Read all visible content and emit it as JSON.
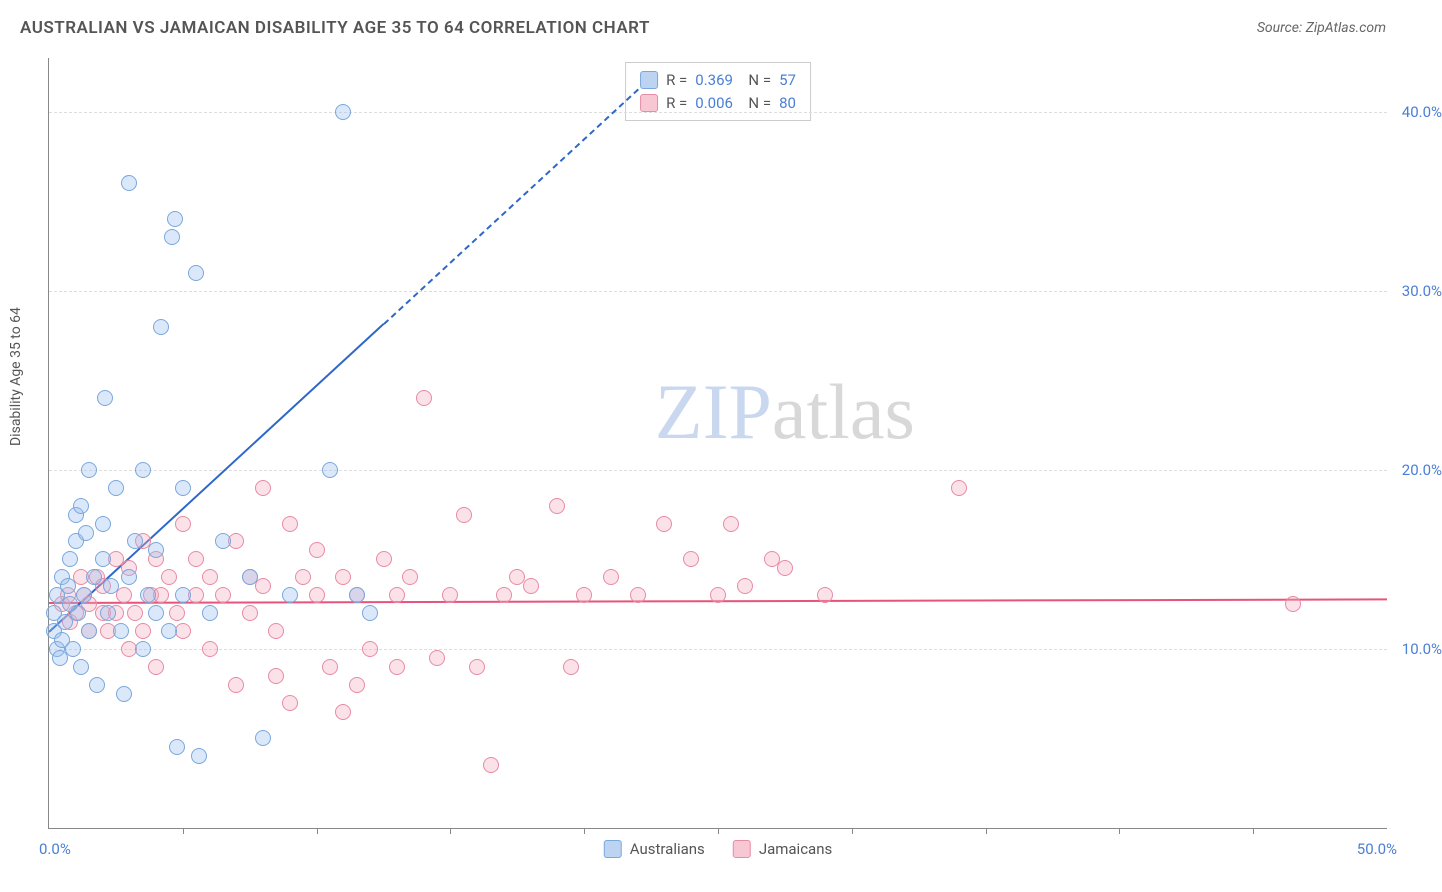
{
  "title": "AUSTRALIAN VS JAMAICAN DISABILITY AGE 35 TO 64 CORRELATION CHART",
  "source": "Source: ZipAtlas.com",
  "y_axis_title": "Disability Age 35 to 64",
  "watermark_zip": "ZIP",
  "watermark_atlas": "atlas",
  "watermark_zip_color": "#c9d8ef",
  "watermark_atlas_color": "#d8d8d8",
  "chart": {
    "type": "scatter",
    "xlim": [
      0,
      50
    ],
    "ylim": [
      0,
      43
    ],
    "x_tick_positions": [
      5,
      10,
      15,
      20,
      25,
      30,
      35,
      40,
      45
    ],
    "y_gridlines": [
      10,
      20,
      30,
      40
    ],
    "x_label_min": "0.0%",
    "x_label_max": "50.0%",
    "y_tick_labels": {
      "10": "10.0%",
      "20": "20.0%",
      "30": "30.0%",
      "40": "40.0%"
    },
    "background_color": "#ffffff",
    "grid_color": "#dddddd",
    "axis_color": "#888888",
    "marker_radius": 8,
    "marker_border_width": 1.5,
    "series": [
      {
        "name": "Australians",
        "fill": "rgba(151,190,237,0.35)",
        "stroke": "#7aa7de",
        "swatch_fill": "#bcd4f2",
        "swatch_border": "#7aa7de",
        "R": "0.369",
        "N": "57",
        "trend": {
          "x1": 0,
          "y1": 11.0,
          "x2": 12.5,
          "y2": 28.2,
          "solid_color": "#2f67c9",
          "dashed_extend_x": 22,
          "dashed_extend_y": 41.3
        },
        "points": [
          [
            0.2,
            11
          ],
          [
            0.2,
            12
          ],
          [
            0.3,
            10
          ],
          [
            0.3,
            13
          ],
          [
            0.4,
            9.5
          ],
          [
            0.5,
            14
          ],
          [
            0.5,
            10.5
          ],
          [
            0.6,
            11.5
          ],
          [
            0.7,
            13.5
          ],
          [
            0.8,
            12.5
          ],
          [
            0.8,
            15
          ],
          [
            0.9,
            10
          ],
          [
            1.0,
            16
          ],
          [
            1.0,
            17.5
          ],
          [
            1.1,
            12
          ],
          [
            1.2,
            18
          ],
          [
            1.2,
            9
          ],
          [
            1.3,
            13
          ],
          [
            1.4,
            16.5
          ],
          [
            1.5,
            11
          ],
          [
            1.5,
            20
          ],
          [
            1.7,
            14
          ],
          [
            1.8,
            8
          ],
          [
            2.0,
            15
          ],
          [
            2.0,
            17
          ],
          [
            2.1,
            24
          ],
          [
            2.2,
            12
          ],
          [
            2.3,
            13.5
          ],
          [
            2.5,
            19
          ],
          [
            2.7,
            11
          ],
          [
            2.8,
            7.5
          ],
          [
            3.0,
            14
          ],
          [
            3.0,
            36
          ],
          [
            3.2,
            16
          ],
          [
            3.5,
            10
          ],
          [
            3.5,
            20
          ],
          [
            3.7,
            13
          ],
          [
            4.0,
            12
          ],
          [
            4.0,
            15.5
          ],
          [
            4.2,
            28
          ],
          [
            4.5,
            11
          ],
          [
            4.6,
            33
          ],
          [
            4.7,
            34
          ],
          [
            4.8,
            4.5
          ],
          [
            5.0,
            13
          ],
          [
            5.0,
            19
          ],
          [
            5.5,
            31
          ],
          [
            5.6,
            4
          ],
          [
            6.0,
            12
          ],
          [
            6.5,
            16
          ],
          [
            7.5,
            14
          ],
          [
            8.0,
            5
          ],
          [
            9.0,
            13
          ],
          [
            10.5,
            20
          ],
          [
            11.0,
            40
          ],
          [
            11.5,
            13
          ],
          [
            12.0,
            12
          ]
        ]
      },
      {
        "name": "Jamaicans",
        "fill": "rgba(244,170,190,0.35)",
        "stroke": "#e88ba4",
        "swatch_fill": "#f7c8d4",
        "swatch_border": "#e88ba4",
        "R": "0.006",
        "N": "80",
        "trend": {
          "x1": 0,
          "y1": 12.6,
          "x2": 50,
          "y2": 12.8,
          "solid_color": "#e6537d"
        },
        "points": [
          [
            0.5,
            12.5
          ],
          [
            0.7,
            13
          ],
          [
            0.8,
            11.5
          ],
          [
            1.0,
            12
          ],
          [
            1.2,
            14
          ],
          [
            1.3,
            13
          ],
          [
            1.5,
            11
          ],
          [
            1.5,
            12.5
          ],
          [
            1.8,
            14
          ],
          [
            2.0,
            12
          ],
          [
            2.0,
            13.5
          ],
          [
            2.2,
            11
          ],
          [
            2.5,
            15
          ],
          [
            2.5,
            12
          ],
          [
            2.8,
            13
          ],
          [
            3.0,
            10
          ],
          [
            3.0,
            14.5
          ],
          [
            3.2,
            12
          ],
          [
            3.5,
            16
          ],
          [
            3.5,
            11
          ],
          [
            3.8,
            13
          ],
          [
            4.0,
            15
          ],
          [
            4.0,
            9
          ],
          [
            4.2,
            13
          ],
          [
            4.5,
            14
          ],
          [
            4.8,
            12
          ],
          [
            5.0,
            17
          ],
          [
            5.0,
            11
          ],
          [
            5.5,
            13
          ],
          [
            5.5,
            15
          ],
          [
            6.0,
            14
          ],
          [
            6.0,
            10
          ],
          [
            6.5,
            13
          ],
          [
            7.0,
            16
          ],
          [
            7.0,
            8
          ],
          [
            7.5,
            14
          ],
          [
            7.5,
            12
          ],
          [
            8.0,
            19
          ],
          [
            8.0,
            13.5
          ],
          [
            8.5,
            11
          ],
          [
            9.0,
            17
          ],
          [
            9.0,
            7
          ],
          [
            9.5,
            14
          ],
          [
            10.0,
            13
          ],
          [
            10.0,
            15.5
          ],
          [
            10.5,
            9
          ],
          [
            11.0,
            14
          ],
          [
            11.0,
            6.5
          ],
          [
            11.5,
            13
          ],
          [
            12.0,
            10
          ],
          [
            12.5,
            15
          ],
          [
            13.0,
            9
          ],
          [
            13.0,
            13
          ],
          [
            13.5,
            14
          ],
          [
            14.0,
            24
          ],
          [
            14.5,
            9.5
          ],
          [
            15.0,
            13
          ],
          [
            15.5,
            17.5
          ],
          [
            16.0,
            9
          ],
          [
            16.5,
            3.5
          ],
          [
            17.0,
            13
          ],
          [
            17.5,
            14
          ],
          [
            18.0,
            13.5
          ],
          [
            19.0,
            18
          ],
          [
            19.5,
            9
          ],
          [
            20.0,
            13
          ],
          [
            21.0,
            14
          ],
          [
            22.0,
            13
          ],
          [
            23.0,
            17
          ],
          [
            24.0,
            15
          ],
          [
            25.0,
            13
          ],
          [
            25.5,
            17
          ],
          [
            26.0,
            13.5
          ],
          [
            27.0,
            15
          ],
          [
            27.5,
            14.5
          ],
          [
            29.0,
            13
          ],
          [
            34.0,
            19
          ],
          [
            46.5,
            12.5
          ],
          [
            11.5,
            8
          ],
          [
            8.5,
            8.5
          ]
        ]
      }
    ]
  },
  "legend_bottom": [
    {
      "label": "Australians",
      "fill": "#bcd4f2",
      "border": "#7aa7de"
    },
    {
      "label": "Jamaicans",
      "fill": "#f7c8d4",
      "border": "#e88ba4"
    }
  ]
}
